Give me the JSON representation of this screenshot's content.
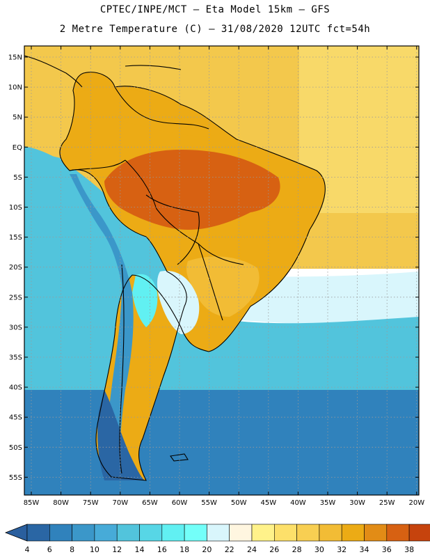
{
  "header": {
    "line1": "CPTEC/INPE/MCT –  Eta Model 15km – GFS",
    "line2": "2 Metre Temperature (C) – 31/08/2020 12UTC fct=54h"
  },
  "axes": {
    "lat_labels": [
      "15N",
      "10N",
      "5N",
      "EQ",
      "5S",
      "10S",
      "15S",
      "20S",
      "25S",
      "30S",
      "35S",
      "40S",
      "45S",
      "50S",
      "55S"
    ],
    "lon_labels": [
      "85W",
      "80W",
      "75W",
      "70W",
      "65W",
      "60W",
      "55W",
      "50W",
      "45W",
      "40W",
      "35W",
      "30W",
      "25W",
      "20W"
    ]
  },
  "colorbar": {
    "labels": [
      "4",
      "6",
      "8",
      "10",
      "12",
      "14",
      "16",
      "18",
      "20",
      "22",
      "24",
      "26",
      "28",
      "30",
      "32",
      "34",
      "36",
      "38"
    ],
    "colors": [
      "#2a66a4",
      "#3082bc",
      "#3b97c9",
      "#47abd8",
      "#52c4dc",
      "#57d6e6",
      "#61f0f2",
      "#73fff9",
      "#d9f6fc",
      "#fff6e0",
      "#fff28a",
      "#fde06a",
      "#f8cf52",
      "#f2bc35",
      "#ecab15",
      "#e28c16",
      "#d76112",
      "#c6430d",
      "#b1320a"
    ],
    "under_color": "#2a5f9e",
    "over_color": "#b32b09"
  },
  "map_colors": {
    "ocean_north": "#f3c84c",
    "ocean_north_light": "#f8d969",
    "ocean_pacific_warm": "#fde06a",
    "ocean_cool": "#52c4dc",
    "ocean_cold": "#3082bc",
    "land_hot": "#d76112",
    "land_warm": "#ecab15",
    "land_mild": "#f2bc35",
    "land_cool": "#61f0f2",
    "andes": "#3b97c9",
    "patagonia": "#2a66a4",
    "pale": "#d9f6fc",
    "coast": "#000000",
    "grid": "#9a9a9a"
  }
}
